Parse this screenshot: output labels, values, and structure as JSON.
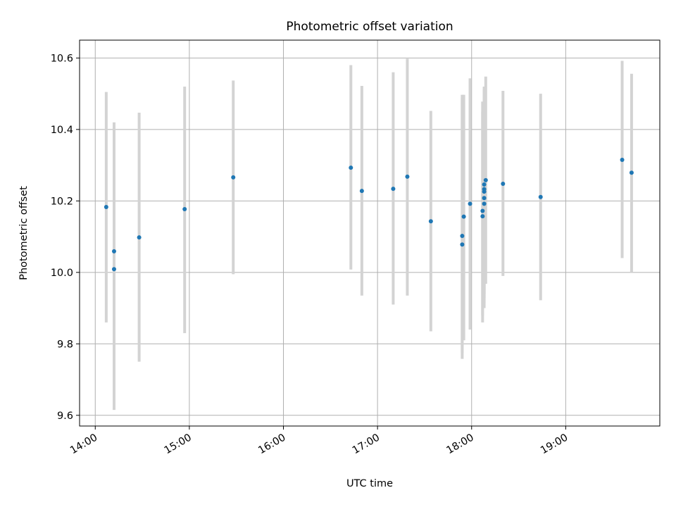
{
  "chart_data": {
    "type": "scatter",
    "title": "Photometric offset variation",
    "xlabel": "UTC time",
    "ylabel": "Photometric offset",
    "xlim": [
      "13:50",
      "20:00"
    ],
    "ylim": [
      9.57,
      10.65
    ],
    "grid": true,
    "x_ticks": [
      "14:00",
      "15:00",
      "16:00",
      "17:00",
      "18:00",
      "19:00"
    ],
    "y_ticks": [
      "9.6",
      "9.8",
      "10.0",
      "10.2",
      "10.4",
      "10.6"
    ],
    "colors": {
      "point": "#1f77b4",
      "errorbar": "#d3d3d3",
      "grid": "#b0b0b0"
    },
    "points": [
      {
        "time": "14:07",
        "y": 10.183,
        "lo": 9.86,
        "hi": 10.505
      },
      {
        "time": "14:12",
        "y": 10.059,
        "lo": 9.7,
        "hi": 10.42
      },
      {
        "time": "14:12",
        "y": 10.009,
        "lo": 9.615,
        "hi": 10.41
      },
      {
        "time": "14:28",
        "y": 10.098,
        "lo": 9.75,
        "hi": 10.447
      },
      {
        "time": "14:57",
        "y": 10.177,
        "lo": 9.83,
        "hi": 10.52
      },
      {
        "time": "15:28",
        "y": 10.266,
        "lo": 9.995,
        "hi": 10.537
      },
      {
        "time": "16:43",
        "y": 10.293,
        "lo": 10.008,
        "hi": 10.58
      },
      {
        "time": "16:50",
        "y": 10.228,
        "lo": 9.935,
        "hi": 10.522
      },
      {
        "time": "17:10",
        "y": 10.234,
        "lo": 9.91,
        "hi": 10.56
      },
      {
        "time": "17:19",
        "y": 10.268,
        "lo": 9.935,
        "hi": 10.598
      },
      {
        "time": "17:34",
        "y": 10.143,
        "lo": 9.835,
        "hi": 10.452
      },
      {
        "time": "17:54",
        "y": 10.078,
        "lo": 9.758,
        "hi": 10.49
      },
      {
        "time": "17:54",
        "y": 10.102,
        "lo": 9.775,
        "hi": 10.497
      },
      {
        "time": "17:55",
        "y": 10.156,
        "lo": 9.81,
        "hi": 10.497
      },
      {
        "time": "17:59",
        "y": 10.192,
        "lo": 9.84,
        "hi": 10.543
      },
      {
        "time": "18:07",
        "y": 10.157,
        "lo": 9.86,
        "hi": 10.45
      },
      {
        "time": "18:07",
        "y": 10.172,
        "lo": 9.88,
        "hi": 10.478
      },
      {
        "time": "18:08",
        "y": 10.192,
        "lo": 9.9,
        "hi": 10.49
      },
      {
        "time": "18:08",
        "y": 10.208,
        "lo": 9.915,
        "hi": 10.5
      },
      {
        "time": "18:08",
        "y": 10.226,
        "lo": 9.93,
        "hi": 10.51
      },
      {
        "time": "18:08",
        "y": 10.233,
        "lo": 9.94,
        "hi": 10.515
      },
      {
        "time": "18:08",
        "y": 10.246,
        "lo": 9.95,
        "hi": 10.52
      },
      {
        "time": "18:09",
        "y": 10.258,
        "lo": 9.968,
        "hi": 10.548
      },
      {
        "time": "18:20",
        "y": 10.248,
        "lo": 9.99,
        "hi": 10.508
      },
      {
        "time": "18:44",
        "y": 10.211,
        "lo": 9.922,
        "hi": 10.5
      },
      {
        "time": "19:36",
        "y": 10.315,
        "lo": 10.04,
        "hi": 10.592
      },
      {
        "time": "19:42",
        "y": 10.279,
        "lo": 10.0,
        "hi": 10.556
      }
    ]
  }
}
